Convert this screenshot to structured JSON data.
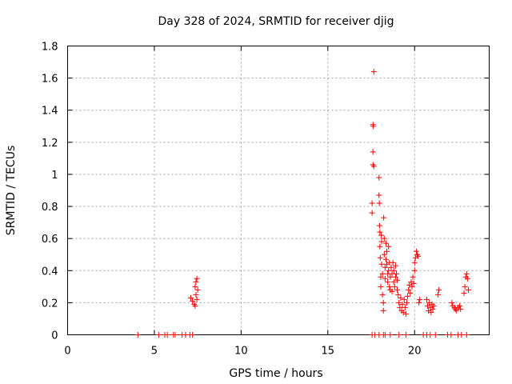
{
  "chart_data": {
    "type": "scatter",
    "title": "Day 328 of 2024, SRMTID for receiver djig",
    "xlabel": "GPS time / hours",
    "ylabel": "SRMTID / TECUs",
    "xlim": [
      0,
      24.3
    ],
    "ylim": [
      0,
      1.8
    ],
    "xticks": [
      0,
      5,
      10,
      15,
      20
    ],
    "xtick_labels": [
      "0",
      "5",
      "10",
      "15",
      "20"
    ],
    "yticks": [
      0,
      0.2,
      0.4,
      0.6,
      0.8,
      1,
      1.2,
      1.4,
      1.6,
      1.8
    ],
    "ytick_labels": [
      "0",
      "0.2",
      "0.4",
      "0.6",
      "0.8",
      "1",
      "1.2",
      "1.4",
      "1.6",
      "1.8"
    ],
    "grid": true,
    "marker_color": "#ff0000",
    "marker": "plus",
    "series": [
      {
        "name": "SRMTID",
        "points": [
          [
            4.05,
            0
          ],
          [
            5.25,
            0
          ],
          [
            5.6,
            0
          ],
          [
            5.75,
            0
          ],
          [
            6.1,
            0
          ],
          [
            6.2,
            0
          ],
          [
            6.6,
            0
          ],
          [
            6.8,
            0
          ],
          [
            7.05,
            0
          ],
          [
            7.2,
            0
          ],
          [
            7.1,
            0.23
          ],
          [
            7.2,
            0.21
          ],
          [
            7.3,
            0.19
          ],
          [
            7.35,
            0.3
          ],
          [
            7.35,
            0.18
          ],
          [
            7.4,
            0.25
          ],
          [
            7.4,
            0.33
          ],
          [
            7.45,
            0.35
          ],
          [
            7.45,
            0.22
          ],
          [
            7.5,
            0.28
          ],
          [
            17.55,
            0
          ],
          [
            17.7,
            0
          ],
          [
            17.95,
            0
          ],
          [
            18.2,
            0
          ],
          [
            18.3,
            0
          ],
          [
            18.6,
            0
          ],
          [
            19.1,
            0
          ],
          [
            19.5,
            0
          ],
          [
            20.5,
            0
          ],
          [
            20.7,
            0
          ],
          [
            20.9,
            0
          ],
          [
            21.2,
            0
          ],
          [
            21.9,
            0
          ],
          [
            22.1,
            0
          ],
          [
            22.5,
            0
          ],
          [
            22.7,
            0
          ],
          [
            23.0,
            0
          ],
          [
            17.55,
            0.76
          ],
          [
            17.55,
            0.82
          ],
          [
            17.6,
            1.06
          ],
          [
            17.6,
            1.14
          ],
          [
            17.6,
            1.31
          ],
          [
            17.62,
            1.3
          ],
          [
            17.65,
            1.64
          ],
          [
            17.65,
            1.05
          ],
          [
            17.95,
            0.98
          ],
          [
            17.95,
            0.87
          ],
          [
            17.97,
            0.82
          ],
          [
            17.98,
            0.68
          ],
          [
            18.0,
            0.64
          ],
          [
            18.0,
            0.55
          ],
          [
            18.02,
            0.48
          ],
          [
            18.05,
            0.36
          ],
          [
            18.05,
            0.3
          ],
          [
            18.08,
            0.62
          ],
          [
            18.1,
            0.58
          ],
          [
            18.1,
            0.44
          ],
          [
            18.15,
            0.38
          ],
          [
            18.15,
            0.25
          ],
          [
            18.2,
            0.15
          ],
          [
            18.2,
            0.2
          ],
          [
            18.22,
            0.73
          ],
          [
            18.25,
            0.6
          ],
          [
            18.25,
            0.5
          ],
          [
            18.3,
            0.42
          ],
          [
            18.3,
            0.35
          ],
          [
            18.35,
            0.57
          ],
          [
            18.35,
            0.47
          ],
          [
            18.4,
            0.52
          ],
          [
            18.4,
            0.44
          ],
          [
            18.45,
            0.38
          ],
          [
            18.45,
            0.33
          ],
          [
            18.5,
            0.55
          ],
          [
            18.5,
            0.4
          ],
          [
            18.55,
            0.45
          ],
          [
            18.55,
            0.3
          ],
          [
            18.6,
            0.36
          ],
          [
            18.6,
            0.28
          ],
          [
            18.65,
            0.42
          ],
          [
            18.7,
            0.38
          ],
          [
            18.7,
            0.27
          ],
          [
            18.75,
            0.45
          ],
          [
            18.8,
            0.33
          ],
          [
            18.8,
            0.4
          ],
          [
            18.85,
            0.3
          ],
          [
            18.9,
            0.43
          ],
          [
            18.9,
            0.36
          ],
          [
            18.95,
            0.38
          ],
          [
            19.0,
            0.34
          ],
          [
            19.0,
            0.28
          ],
          [
            19.05,
            0.25
          ],
          [
            19.1,
            0.2
          ],
          [
            19.15,
            0.17
          ],
          [
            19.2,
            0.23
          ],
          [
            19.25,
            0.15
          ],
          [
            19.3,
            0.19
          ],
          [
            19.35,
            0.14
          ],
          [
            19.4,
            0.22
          ],
          [
            19.45,
            0.17
          ],
          [
            19.5,
            0.13
          ],
          [
            19.55,
            0.2
          ],
          [
            19.6,
            0.24
          ],
          [
            19.65,
            0.28
          ],
          [
            19.7,
            0.31
          ],
          [
            19.75,
            0.26
          ],
          [
            19.8,
            0.33
          ],
          [
            19.85,
            0.3
          ],
          [
            19.9,
            0.36
          ],
          [
            19.95,
            0.32
          ],
          [
            20.0,
            0.4
          ],
          [
            20.0,
            0.45
          ],
          [
            20.05,
            0.48
          ],
          [
            20.1,
            0.52
          ],
          [
            20.15,
            0.5
          ],
          [
            20.2,
            0.49
          ],
          [
            20.25,
            0.2
          ],
          [
            20.3,
            0.22
          ],
          [
            20.7,
            0.22
          ],
          [
            20.75,
            0.18
          ],
          [
            20.8,
            0.15
          ],
          [
            20.85,
            0.2
          ],
          [
            20.9,
            0.17
          ],
          [
            20.95,
            0.14
          ],
          [
            21.0,
            0.19
          ],
          [
            21.05,
            0.16
          ],
          [
            21.1,
            0.18
          ],
          [
            21.35,
            0.25
          ],
          [
            21.4,
            0.28
          ],
          [
            22.15,
            0.2
          ],
          [
            22.2,
            0.18
          ],
          [
            22.3,
            0.17
          ],
          [
            22.35,
            0.16
          ],
          [
            22.4,
            0.15
          ],
          [
            22.5,
            0.17
          ],
          [
            22.6,
            0.18
          ],
          [
            22.65,
            0.16
          ],
          [
            22.85,
            0.26
          ],
          [
            22.9,
            0.3
          ],
          [
            22.95,
            0.36
          ],
          [
            23.0,
            0.38
          ],
          [
            23.05,
            0.35
          ],
          [
            23.1,
            0.28
          ]
        ]
      }
    ]
  }
}
